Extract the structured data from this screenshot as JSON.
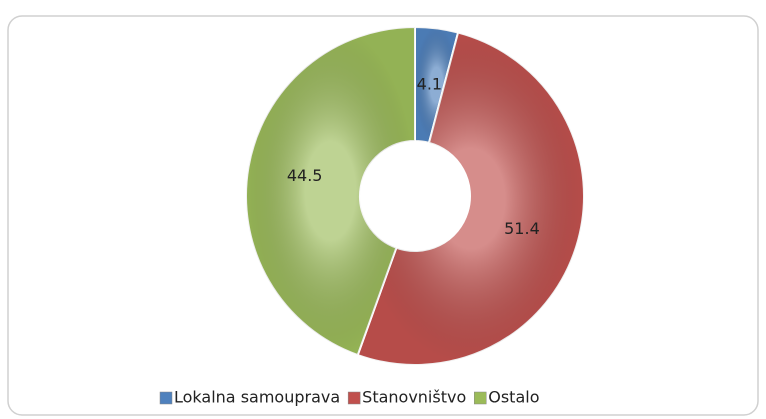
{
  "chart_data": {
    "type": "donut",
    "categories": [
      "Lokalna samouprava",
      "Stanovništvo",
      "Ostalo"
    ],
    "values": [
      4.1,
      51.4,
      44.5
    ],
    "colors": [
      "#4f81bd",
      "#c0504d",
      "#9bbb59"
    ],
    "legend": "bottom"
  }
}
